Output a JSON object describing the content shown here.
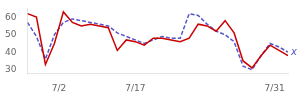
{
  "chart_data": {
    "type": "line",
    "x": [
      0,
      1,
      2,
      3,
      4,
      5,
      6,
      7,
      8,
      9,
      10,
      11,
      12,
      13,
      14,
      15,
      16,
      17,
      18,
      19,
      20,
      21,
      22,
      23,
      24,
      25,
      26,
      27,
      28,
      29
    ],
    "series": [
      {
        "color": "#cc0000",
        "line_style": "solid",
        "values": [
          62,
          60,
          33,
          45,
          63,
          57,
          55,
          56,
          55,
          54,
          41,
          47,
          46,
          44,
          48,
          48,
          47,
          46,
          48,
          56,
          55,
          52,
          58,
          51,
          35,
          31,
          38,
          44,
          41,
          38
        ]
      },
      {
        "color": "#5555cc",
        "line_style": "dashed",
        "values": [
          57,
          49,
          36,
          50,
          57,
          59,
          58,
          57,
          56,
          55,
          51,
          49,
          47,
          45,
          47,
          49,
          48,
          48,
          62,
          61,
          56,
          52,
          50,
          46,
          32,
          30,
          38,
          45,
          43,
          40
        ]
      }
    ],
    "xlim": [
      0,
      29
    ],
    "xticks": [
      {
        "value": 3.5,
        "label": "7/2"
      },
      {
        "value": 12,
        "label": "7/17"
      },
      {
        "value": 20,
        "label": null
      },
      {
        "value": 27.5,
        "label": "7/31"
      }
    ],
    "ylim": [
      28,
      65
    ],
    "yticks": [
      30,
      40,
      50,
      60
    ],
    "grid": false,
    "annotations": [
      {
        "text": "x",
        "x": 29,
        "y": 40,
        "color": "#5555cc"
      }
    ]
  }
}
